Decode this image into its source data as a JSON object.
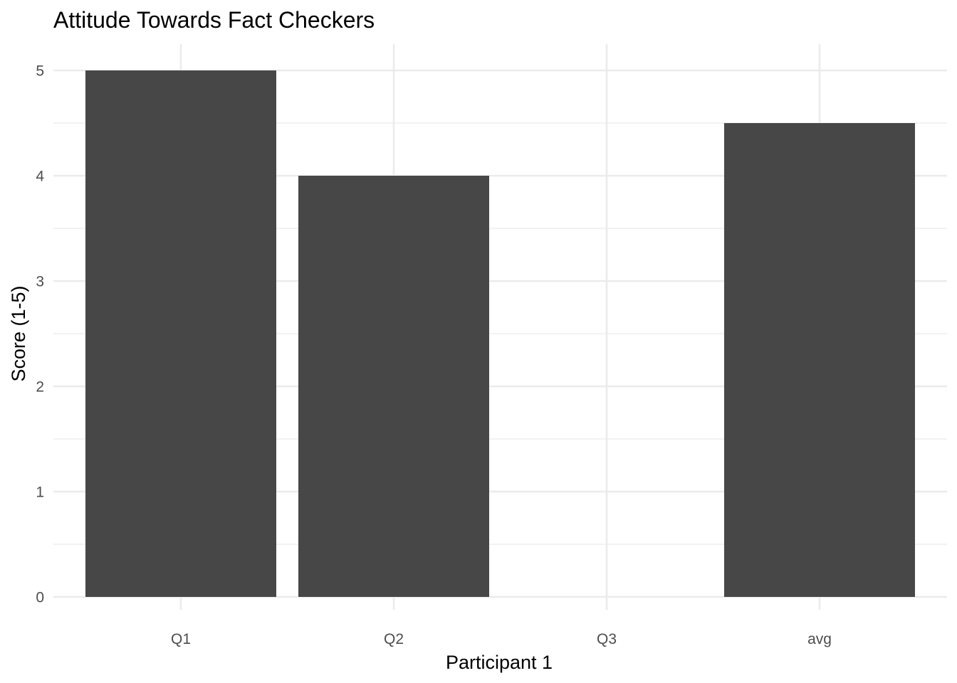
{
  "chart_data": {
    "type": "bar",
    "title": "Attitude Towards Fact Checkers",
    "xlabel": "Participant 1",
    "ylabel": "Score (1-5)",
    "categories": [
      "Q1",
      "Q2",
      "Q3",
      "avg"
    ],
    "values": [
      5,
      4,
      0,
      4.5
    ],
    "ylim": [
      0,
      5
    ],
    "yticks": [
      "0",
      "1",
      "2",
      "3",
      "4",
      "5"
    ],
    "grid": true,
    "legend": "none",
    "bar_color": "#474747",
    "grid_color": "#ebebeb"
  }
}
